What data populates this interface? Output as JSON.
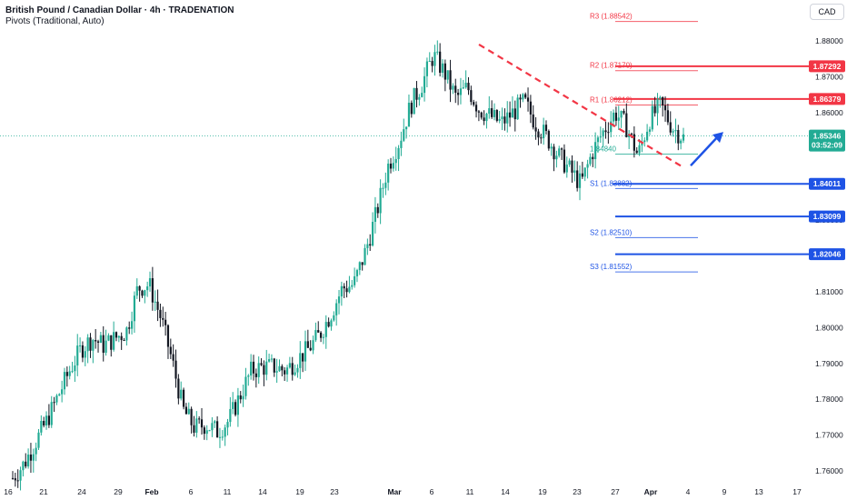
{
  "header": {
    "title": "British Pound / Canadian Dollar · 4h · TRADENATION",
    "subtitle": "Pivots (Traditional, Auto)",
    "currency": "CAD"
  },
  "colors": {
    "up": "#22ab94",
    "down": "#131722",
    "resistance": "#f23645",
    "support": "#1e53e5",
    "price": "#22ab94"
  },
  "chart_data": {
    "type": "candlestick",
    "ylim": [
      1.757,
      1.894
    ],
    "y_ticks": [
      "1.88000",
      "1.87000",
      "1.86000",
      "1.85000",
      "1.84000",
      "1.83000",
      "1.82000",
      "1.81000",
      "1.80000",
      "1.79000",
      "1.78000",
      "1.77000",
      "1.76000"
    ],
    "x_ticks": [
      "16",
      "21",
      "24",
      "29",
      "Feb",
      "6",
      "11",
      "14",
      "19",
      "23",
      "Mar",
      "6",
      "11",
      "14",
      "19",
      "23",
      "27",
      "Apr",
      "4",
      "9",
      "13",
      "17"
    ],
    "close_path": [
      1.758,
      1.762,
      1.768,
      1.774,
      1.781,
      1.788,
      1.794,
      1.797,
      1.795,
      1.797,
      1.799,
      1.811,
      1.812,
      1.803,
      1.791,
      1.777,
      1.772,
      1.773,
      1.771,
      1.774,
      1.781,
      1.788,
      1.789,
      1.789,
      1.788,
      1.791,
      1.794,
      1.798,
      1.804,
      1.811,
      1.812,
      1.821,
      1.832,
      1.845,
      1.852,
      1.862,
      1.868,
      1.876,
      1.871,
      1.864,
      1.867,
      1.861,
      1.859,
      1.857,
      1.86,
      1.863,
      1.857,
      1.853,
      1.848,
      1.844,
      1.84,
      1.849,
      1.855,
      1.86,
      1.856,
      1.848,
      1.858,
      1.862,
      1.856,
      1.853
    ],
    "current_price": "1.85346",
    "countdown": "03:52:09",
    "pivots": [
      {
        "label": "R3 (1.88542)",
        "value": 1.88542,
        "color": "#f23645"
      },
      {
        "label": "R2 (1.87170)",
        "value": 1.8717,
        "color": "#f23645"
      },
      {
        "label": "R1 (1.86212)",
        "value": 1.86212,
        "color": "#f23645"
      },
      {
        "label": "P (1.84840)",
        "value": 1.8484,
        "color": "#22ab94",
        "label_display": "1.84840"
      },
      {
        "label": "S1 (1.83882)",
        "value": 1.83882,
        "color": "#1e53e5"
      },
      {
        "label": "S2 (1.82510)",
        "value": 1.8251,
        "color": "#1e53e5"
      },
      {
        "label": "S3 (1.81552)",
        "value": 1.81552,
        "color": "#1e53e5"
      }
    ],
    "levels": [
      {
        "value": 1.87292,
        "label": "1.87292",
        "color": "#f23645"
      },
      {
        "value": 1.86379,
        "label": "1.86379",
        "color": "#f23645"
      },
      {
        "value": 1.84011,
        "label": "1.84011",
        "color": "#1e53e5"
      },
      {
        "value": 1.83099,
        "label": "1.83099",
        "color": "#1e53e5"
      },
      {
        "value": 1.82046,
        "label": "1.82046",
        "color": "#1e53e5"
      }
    ],
    "trendline": {
      "from": [
        1.879,
        "Mar 12"
      ],
      "to": [
        1.845,
        "Apr 3"
      ],
      "color": "#f23645",
      "style": "dashed"
    },
    "projection_arrow": {
      "from": 1.8452,
      "to": 1.8546,
      "color": "#1e53e5"
    }
  }
}
